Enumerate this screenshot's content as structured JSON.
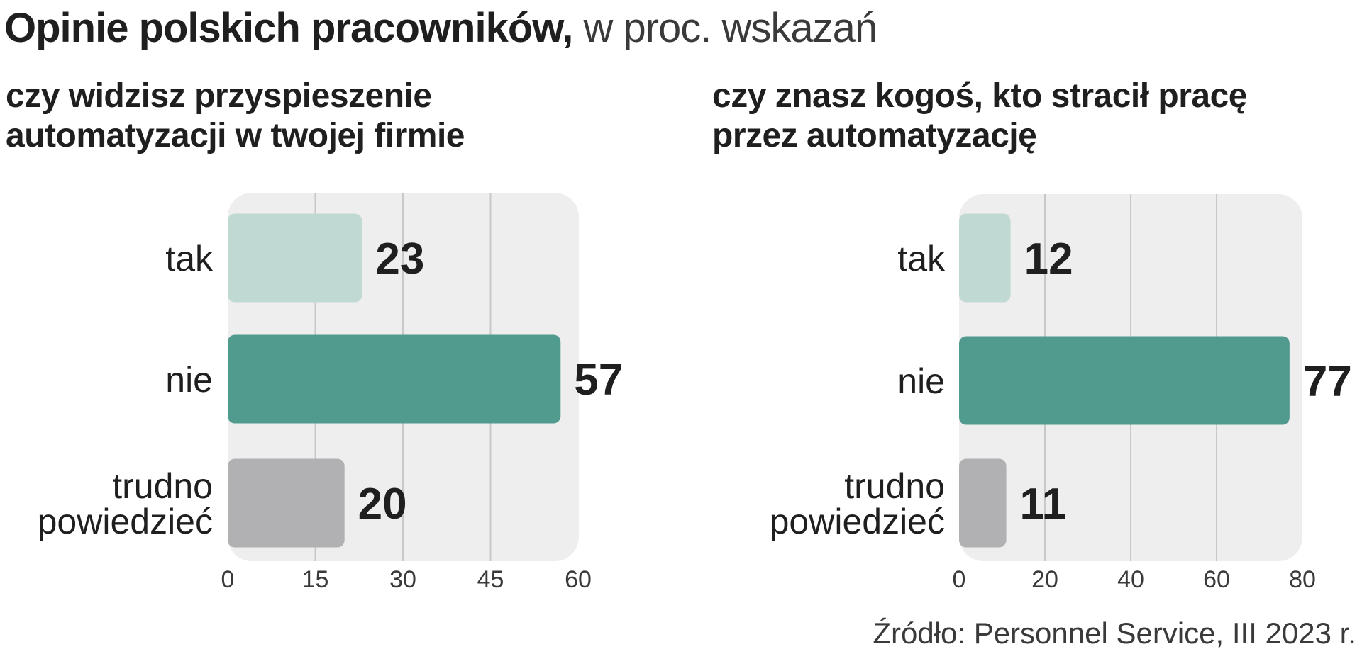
{
  "header": {
    "title_bold": "Opinie polskich pracowników,",
    "title_light": " w proc. wskazań"
  },
  "source": "Źródło: Personnel Service, III 2023 r.",
  "colors": {
    "tak": "#c0d9d2",
    "nie": "#519b8e",
    "trudno": "#b1b1b3",
    "panel": "#eeeeee",
    "grid": "#c8c8c8"
  },
  "chart_data": [
    {
      "type": "bar",
      "orientation": "horizontal",
      "title_lines": [
        "czy widzisz przyspieszenie",
        "automatyzacji w twojej firmie"
      ],
      "categories": [
        [
          "tak"
        ],
        [
          "nie"
        ],
        [
          "trudno",
          "powiedzieć"
        ]
      ],
      "values": [
        23,
        57,
        20
      ],
      "xlim": [
        0,
        60
      ],
      "ticks": [
        "0",
        "15",
        "30",
        "45",
        "60"
      ],
      "grid": true,
      "legend": "none"
    },
    {
      "type": "bar",
      "orientation": "horizontal",
      "title_lines": [
        "czy znasz kogoś, kto stracił pracę",
        "przez automatyzację"
      ],
      "categories": [
        [
          "tak"
        ],
        [
          "nie"
        ],
        [
          "trudno",
          "powiedzieć"
        ]
      ],
      "values": [
        12,
        77,
        11
      ],
      "xlim": [
        0,
        80
      ],
      "ticks": [
        "0",
        "20",
        "40",
        "60",
        "80"
      ],
      "grid": true,
      "legend": "none"
    }
  ]
}
